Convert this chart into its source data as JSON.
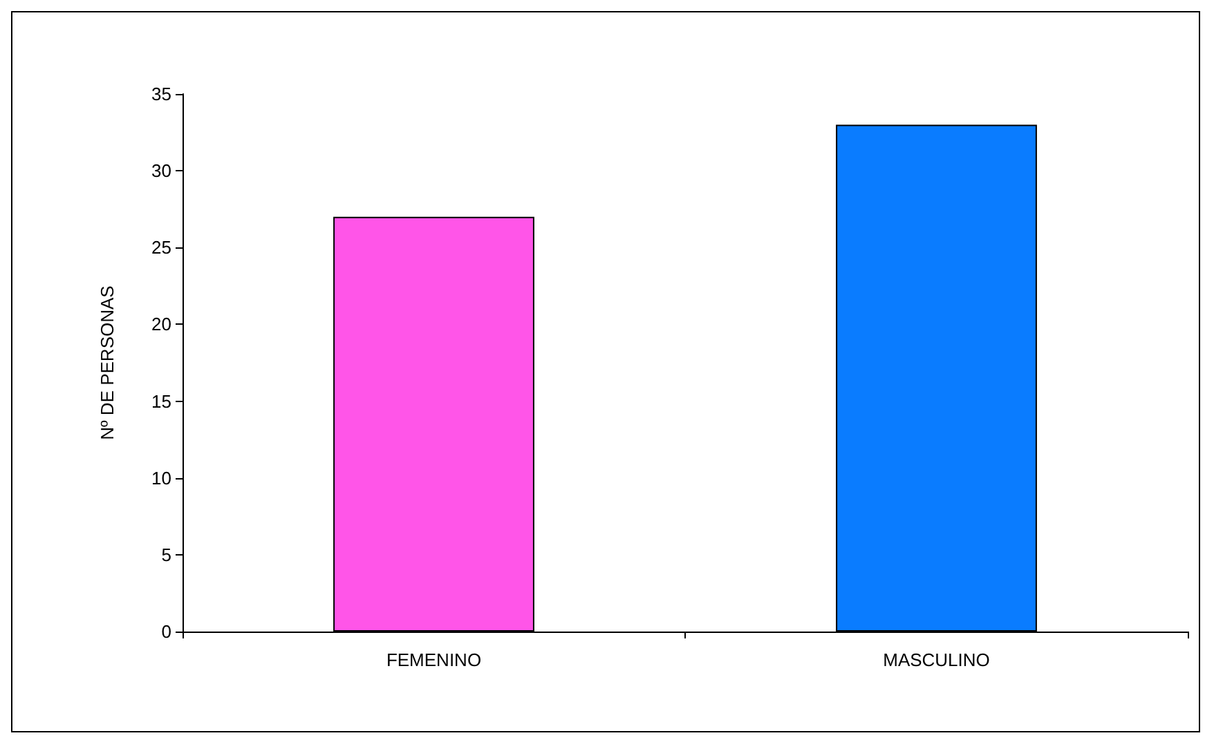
{
  "chart_data": {
    "type": "bar",
    "ylabel": "Nº DE PERSONAS",
    "categories": [
      "FEMENINO",
      "MASCULINO"
    ],
    "values": [
      27,
      33
    ],
    "colors": [
      "#ff55e8",
      "#0a7cff"
    ],
    "ylim": [
      0,
      35
    ],
    "yticks": [
      0,
      5,
      10,
      15,
      20,
      25,
      30,
      35
    ],
    "grid": false
  }
}
